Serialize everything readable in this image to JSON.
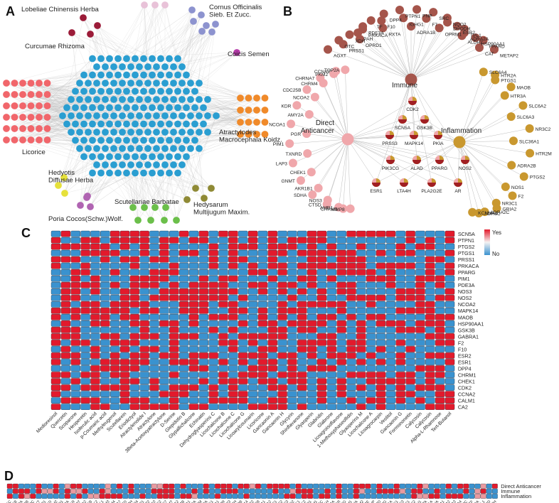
{
  "panel_labels": {
    "a": "A",
    "b": "B",
    "c": "C",
    "d": "D"
  },
  "colors": {
    "hub": "#2a9ed1",
    "yes": "#e21a2c",
    "no": "#3a92cf",
    "mid": "#f4f2f2",
    "edge": "#bdbdbd",
    "immune": "#a5554b",
    "anticancer": "#f0a7ab",
    "inflammation": "#c9982f"
  },
  "panel_a": {
    "herbs": [
      {
        "label": "Lobeliae Chinensis Herba",
        "color": "#e8c2d8"
      },
      {
        "label": "Cornus Officinalis\nSieb. Et Zucc.",
        "color": "#8d93cf"
      },
      {
        "label": "Curcumae Rhizoma",
        "color": "#9b1b38"
      },
      {
        "label": "Coicis Semen",
        "color": "#b53aa8"
      },
      {
        "label": "Licorice",
        "color": "#f1666b"
      },
      {
        "label": "Atractylodes\nMacrocephala Koidz.",
        "color": "#f08a2a"
      },
      {
        "label": "Hedyotis\nDiffusae Herba",
        "color": "#e6e13b"
      },
      {
        "label": "Poria Cocos(Schw.)Wolf.",
        "color": "#b064b2"
      },
      {
        "label": "Scutellariae Barbatae",
        "color": "#6bbf4a"
      },
      {
        "label": "Hedysarum\nMultijugum Maxim.",
        "color": "#8f8a35"
      }
    ]
  },
  "panel_b": {
    "groups": [
      {
        "label": "Immune",
        "targets": [
          "OPRD1",
          "PRSS1",
          "AGXT",
          "PRKACA",
          "XDH",
          "OTC",
          "TF",
          "PDE3A",
          "PAH",
          "DPP4",
          "F10",
          "RXTA",
          "PTPN1",
          "IGHG1",
          "ADRA1B",
          "PNP",
          "F7",
          "OPRM1",
          "SRC",
          "DHODH",
          "ADRA2A",
          "NQO2",
          "TPL1",
          "PPARD",
          "ESR2",
          "HSP90AA1",
          "METAP2",
          "ALDH2",
          "CAT"
        ]
      },
      {
        "label": "Direct\nAnticancer",
        "targets": [
          "TOP2A",
          "CCNA2",
          "PKM2",
          "CHRNA7",
          "CHRM4",
          "CDC25B",
          "NCOA2",
          "KDR",
          "AMY2A",
          "NCOA1",
          "PGR",
          "PIM1",
          "TXNRD",
          "LAP3",
          "CHEK1",
          "GNMT",
          "AKR1B1",
          "SDHA",
          "NOS3",
          "CTSD",
          "AMD1",
          "CHRM3",
          "MMP8"
        ]
      },
      {
        "label": "Inflammation",
        "targets": [
          "SLC6A4",
          "HTR2A",
          "PTGS1",
          "MAOB",
          "HTR3A",
          "SLC6A2",
          "SLC6A3",
          "NR3C2",
          "SLC36A1",
          "HTR2M",
          "ADRA2B",
          "PTGS2",
          "NOS1",
          "F2",
          "NR3C1",
          "GRIA2",
          "ADRA2C",
          "ADH1C",
          "KCNMA1"
        ]
      }
    ],
    "shared": [
      "CDK2",
      "SCN5A",
      "GSK3B",
      "PRSS3",
      "MAPK14",
      "PKIA",
      "PIK3CG",
      "ALAD",
      "PPARG",
      "NOS2",
      "ESR1",
      "LTA4H",
      "PLA2G2E",
      "AR"
    ]
  },
  "panel_c": {
    "legend_yes": "Yes",
    "legend_no": "No",
    "rows": [
      "SCN5A",
      "PTPN1",
      "PTGS2",
      "PTGS1",
      "PRSS1",
      "PRKACA",
      "PPARG",
      "PIM1",
      "PDE3A",
      "NOS3",
      "NOS2",
      "NCOA2",
      "MAPK14",
      "MAOB",
      "HSP90AA1",
      "GSK3B",
      "GABRA1",
      "F2",
      "F10",
      "ESR2",
      "ESR1",
      "DPP4",
      "CHRM1",
      "CHEK1",
      "CDK2",
      "CCNA2",
      "CALM1",
      "CA2"
    ],
    "columns": [
      "Medioresinol",
      "Quercetin",
      "Scoparone",
      "Hesperetin",
      "Isoferulic acid",
      "p-Coumaric acid",
      "Methyleugenol",
      "Scutellarein",
      "Eriodictyol",
      "Atractylenolide I",
      "Atractylone",
      "3Beta-Acetoxyatractylone",
      "D-Serine",
      "Glepidotin B",
      "Glypallichalcone",
      "Echinatin",
      "Dehydroglyasperins C",
      "Licochalcone B",
      "Licochalcone C",
      "Licochalcone G",
      "Licoarylcoumarin",
      "Licoricone",
      "Gancaonin A",
      "Gancaonin H",
      "Glycyrin",
      "Shinflavanone",
      "Glyasperin",
      "Glabridin",
      "Glabrone",
      "Licoagroisoflavone",
      "1-Methoxyphaseollidin",
      "Glyasperins M",
      "Licochalcone A",
      "Licoagrocarpin",
      "Vestitol",
      "Gancaonin G",
      "Formononetin",
      "Calycosin",
      "Calycosin",
      "Alpha-L-Rhamnose",
      "Tert-Butanol"
    ]
  },
  "panel_d": {
    "rows": [
      "Direct Anticancer",
      "Immune",
      "Inflammation"
    ],
    "columns": [
      "ADH1C",
      "ADRA1B",
      "ADRA2A",
      "ADRA2B",
      "ADRA2C",
      "AGXT",
      "AKR1B1",
      "ALAD",
      "ALDH2",
      "AMD1",
      "AMY2A",
      "AR",
      "CAT",
      "CCNA2",
      "CDC25B",
      "CDK2",
      "CHEK1",
      "CHRM3",
      "CHRM4",
      "CHRNA7",
      "CTSD",
      "DHODH",
      "DPP4",
      "ESR1",
      "ESR2",
      "F10",
      "F2",
      "F7",
      "GNMT",
      "GRIA2",
      "GSK3B",
      "HSP90AA1",
      "HTR2A",
      "HTR2M",
      "HTR3A",
      "IGHG1",
      "KCNMA1",
      "KDR",
      "LAP3",
      "LTA4H",
      "MAOB",
      "MAPK14",
      "METAP2",
      "MMP8",
      "NCOA1",
      "NCOA2",
      "NOS1",
      "NOS2",
      "NOS3",
      "NQO2",
      "NR3C1",
      "NR3C2",
      "OPRD1",
      "OPRM1",
      "OTC",
      "PAH",
      "PDE3A",
      "PGR",
      "PIK3CG",
      "PIM1",
      "PKIA",
      "PKM2",
      "PLA2G2E",
      "PNP",
      "PPARD",
      "PPARG",
      "PRKACA",
      "PRSS1",
      "PRSS3",
      "PTGS1",
      "PTGS2",
      "PTPN1",
      "RXTA",
      "SCN5A",
      "SDHA",
      "SLC36A1",
      "SLC6A2",
      "SLC6A3",
      "SLC6A4",
      "SRC",
      "TF",
      "TOP2A",
      "TPL1",
      "TXNRD",
      "XDH"
    ]
  }
}
